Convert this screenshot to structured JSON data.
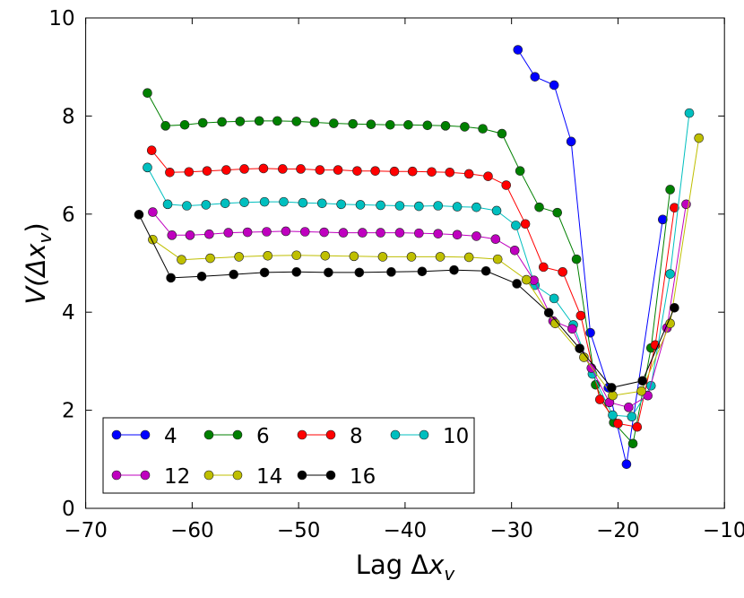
{
  "chart_data": {
    "type": "line",
    "title": "",
    "xlabel": "Lag Δx_v",
    "ylabel": "V(Δx_v)",
    "xlim": [
      -70,
      -10
    ],
    "ylim": [
      0,
      10
    ],
    "xticks": [
      -70,
      -60,
      -50,
      -40,
      -30,
      -20,
      -10
    ],
    "yticks": [
      0,
      2,
      4,
      6,
      8,
      10
    ],
    "grid": false,
    "legend_position": "lower-left",
    "series": [
      {
        "name": "4",
        "color": "#0000ff",
        "x": [
          -29.4,
          -27.8,
          -26.0,
          -24.4,
          -22.6,
          -20.9,
          -19.2,
          -15.8
        ],
        "y": [
          9.35,
          8.8,
          8.63,
          7.48,
          3.58,
          2.46,
          0.9,
          5.89
        ]
      },
      {
        "name": "6",
        "color": "#008000",
        "x": [
          -64.2,
          -62.5,
          -60.7,
          -59.0,
          -57.2,
          -55.5,
          -53.7,
          -52.0,
          -50.2,
          -48.5,
          -46.7,
          -44.9,
          -43.2,
          -41.4,
          -39.7,
          -37.9,
          -36.2,
          -34.4,
          -32.7,
          -30.9,
          -29.2,
          -27.4,
          -25.7,
          -23.9,
          -22.1,
          -20.4,
          -18.6,
          -16.9,
          -15.1
        ],
        "y": [
          8.47,
          7.8,
          7.82,
          7.86,
          7.88,
          7.89,
          7.9,
          7.9,
          7.89,
          7.87,
          7.85,
          7.84,
          7.83,
          7.82,
          7.82,
          7.81,
          7.8,
          7.78,
          7.74,
          7.64,
          6.88,
          6.14,
          6.03,
          5.08,
          2.52,
          1.75,
          1.32,
          3.27,
          6.5
        ]
      },
      {
        "name": "8",
        "color": "#ff0000",
        "x": [
          -63.8,
          -62.1,
          -60.3,
          -58.6,
          -56.8,
          -55.1,
          -53.3,
          -51.5,
          -49.8,
          -48.0,
          -46.3,
          -44.5,
          -42.8,
          -41.0,
          -39.3,
          -37.5,
          -35.8,
          -34.0,
          -32.2,
          -30.5,
          -28.7,
          -27.0,
          -25.2,
          -23.5,
          -21.7,
          -20.0,
          -18.2,
          -16.5,
          -14.7
        ],
        "y": [
          7.3,
          6.85,
          6.86,
          6.88,
          6.9,
          6.92,
          6.93,
          6.92,
          6.92,
          6.9,
          6.9,
          6.88,
          6.88,
          6.87,
          6.87,
          6.86,
          6.85,
          6.82,
          6.77,
          6.59,
          5.8,
          4.92,
          4.82,
          3.93,
          2.22,
          1.73,
          1.66,
          3.33,
          6.13
        ]
      },
      {
        "name": "10",
        "color": "#00bfbf",
        "x": [
          -64.2,
          -62.3,
          -60.5,
          -58.7,
          -56.9,
          -55.1,
          -53.2,
          -51.4,
          -49.6,
          -47.8,
          -46.0,
          -44.2,
          -42.3,
          -40.5,
          -38.7,
          -36.9,
          -35.1,
          -33.3,
          -31.4,
          -29.6,
          -27.8,
          -26.0,
          -24.2,
          -22.4,
          -20.5,
          -18.7,
          -16.9,
          -15.1,
          -13.3
        ],
        "y": [
          6.95,
          6.2,
          6.17,
          6.19,
          6.22,
          6.24,
          6.25,
          6.25,
          6.23,
          6.22,
          6.2,
          6.19,
          6.18,
          6.17,
          6.16,
          6.17,
          6.15,
          6.14,
          6.07,
          5.77,
          4.55,
          4.28,
          3.74,
          2.74,
          1.9,
          1.87,
          2.5,
          4.78,
          8.06
        ]
      },
      {
        "name": "12",
        "color": "#bf00bf",
        "x": [
          -63.7,
          -61.9,
          -60.2,
          -58.4,
          -56.6,
          -54.8,
          -53.0,
          -51.2,
          -49.4,
          -47.6,
          -45.8,
          -44.0,
          -42.3,
          -40.5,
          -38.7,
          -36.9,
          -35.1,
          -33.3,
          -31.5,
          -29.7,
          -27.9,
          -26.1,
          -24.3,
          -22.5,
          -20.8,
          -19.0,
          -17.2,
          -15.4,
          -13.6
        ],
        "y": [
          6.04,
          5.57,
          5.57,
          5.59,
          5.62,
          5.63,
          5.64,
          5.65,
          5.64,
          5.63,
          5.62,
          5.62,
          5.62,
          5.62,
          5.61,
          5.6,
          5.58,
          5.55,
          5.49,
          5.26,
          4.65,
          3.82,
          3.66,
          2.86,
          2.16,
          2.06,
          2.3,
          3.68,
          6.2
        ]
      },
      {
        "name": "14",
        "color": "#bfbf00",
        "x": [
          -63.7,
          -61.0,
          -58.3,
          -55.6,
          -52.9,
          -50.2,
          -47.5,
          -44.8,
          -42.1,
          -39.4,
          -36.7,
          -34.0,
          -31.3,
          -28.6,
          -25.9,
          -23.2,
          -20.5,
          -17.8,
          -15.1,
          -12.4
        ],
        "y": [
          5.48,
          5.07,
          5.1,
          5.13,
          5.15,
          5.16,
          5.15,
          5.14,
          5.13,
          5.13,
          5.13,
          5.12,
          5.08,
          4.66,
          3.77,
          3.08,
          2.3,
          2.39,
          3.77,
          7.55
        ]
      },
      {
        "name": "16",
        "color": "#000000",
        "x": [
          -65.0,
          -62.0,
          -59.1,
          -56.1,
          -53.2,
          -50.2,
          -47.2,
          -44.3,
          -41.3,
          -38.4,
          -35.4,
          -32.4,
          -29.5,
          -26.5,
          -23.6,
          -20.6,
          -17.7,
          -14.7
        ],
        "y": [
          5.99,
          4.7,
          4.73,
          4.77,
          4.81,
          4.82,
          4.81,
          4.81,
          4.82,
          4.83,
          4.86,
          4.84,
          4.58,
          3.99,
          3.26,
          2.46,
          2.6,
          4.09
        ]
      }
    ]
  }
}
